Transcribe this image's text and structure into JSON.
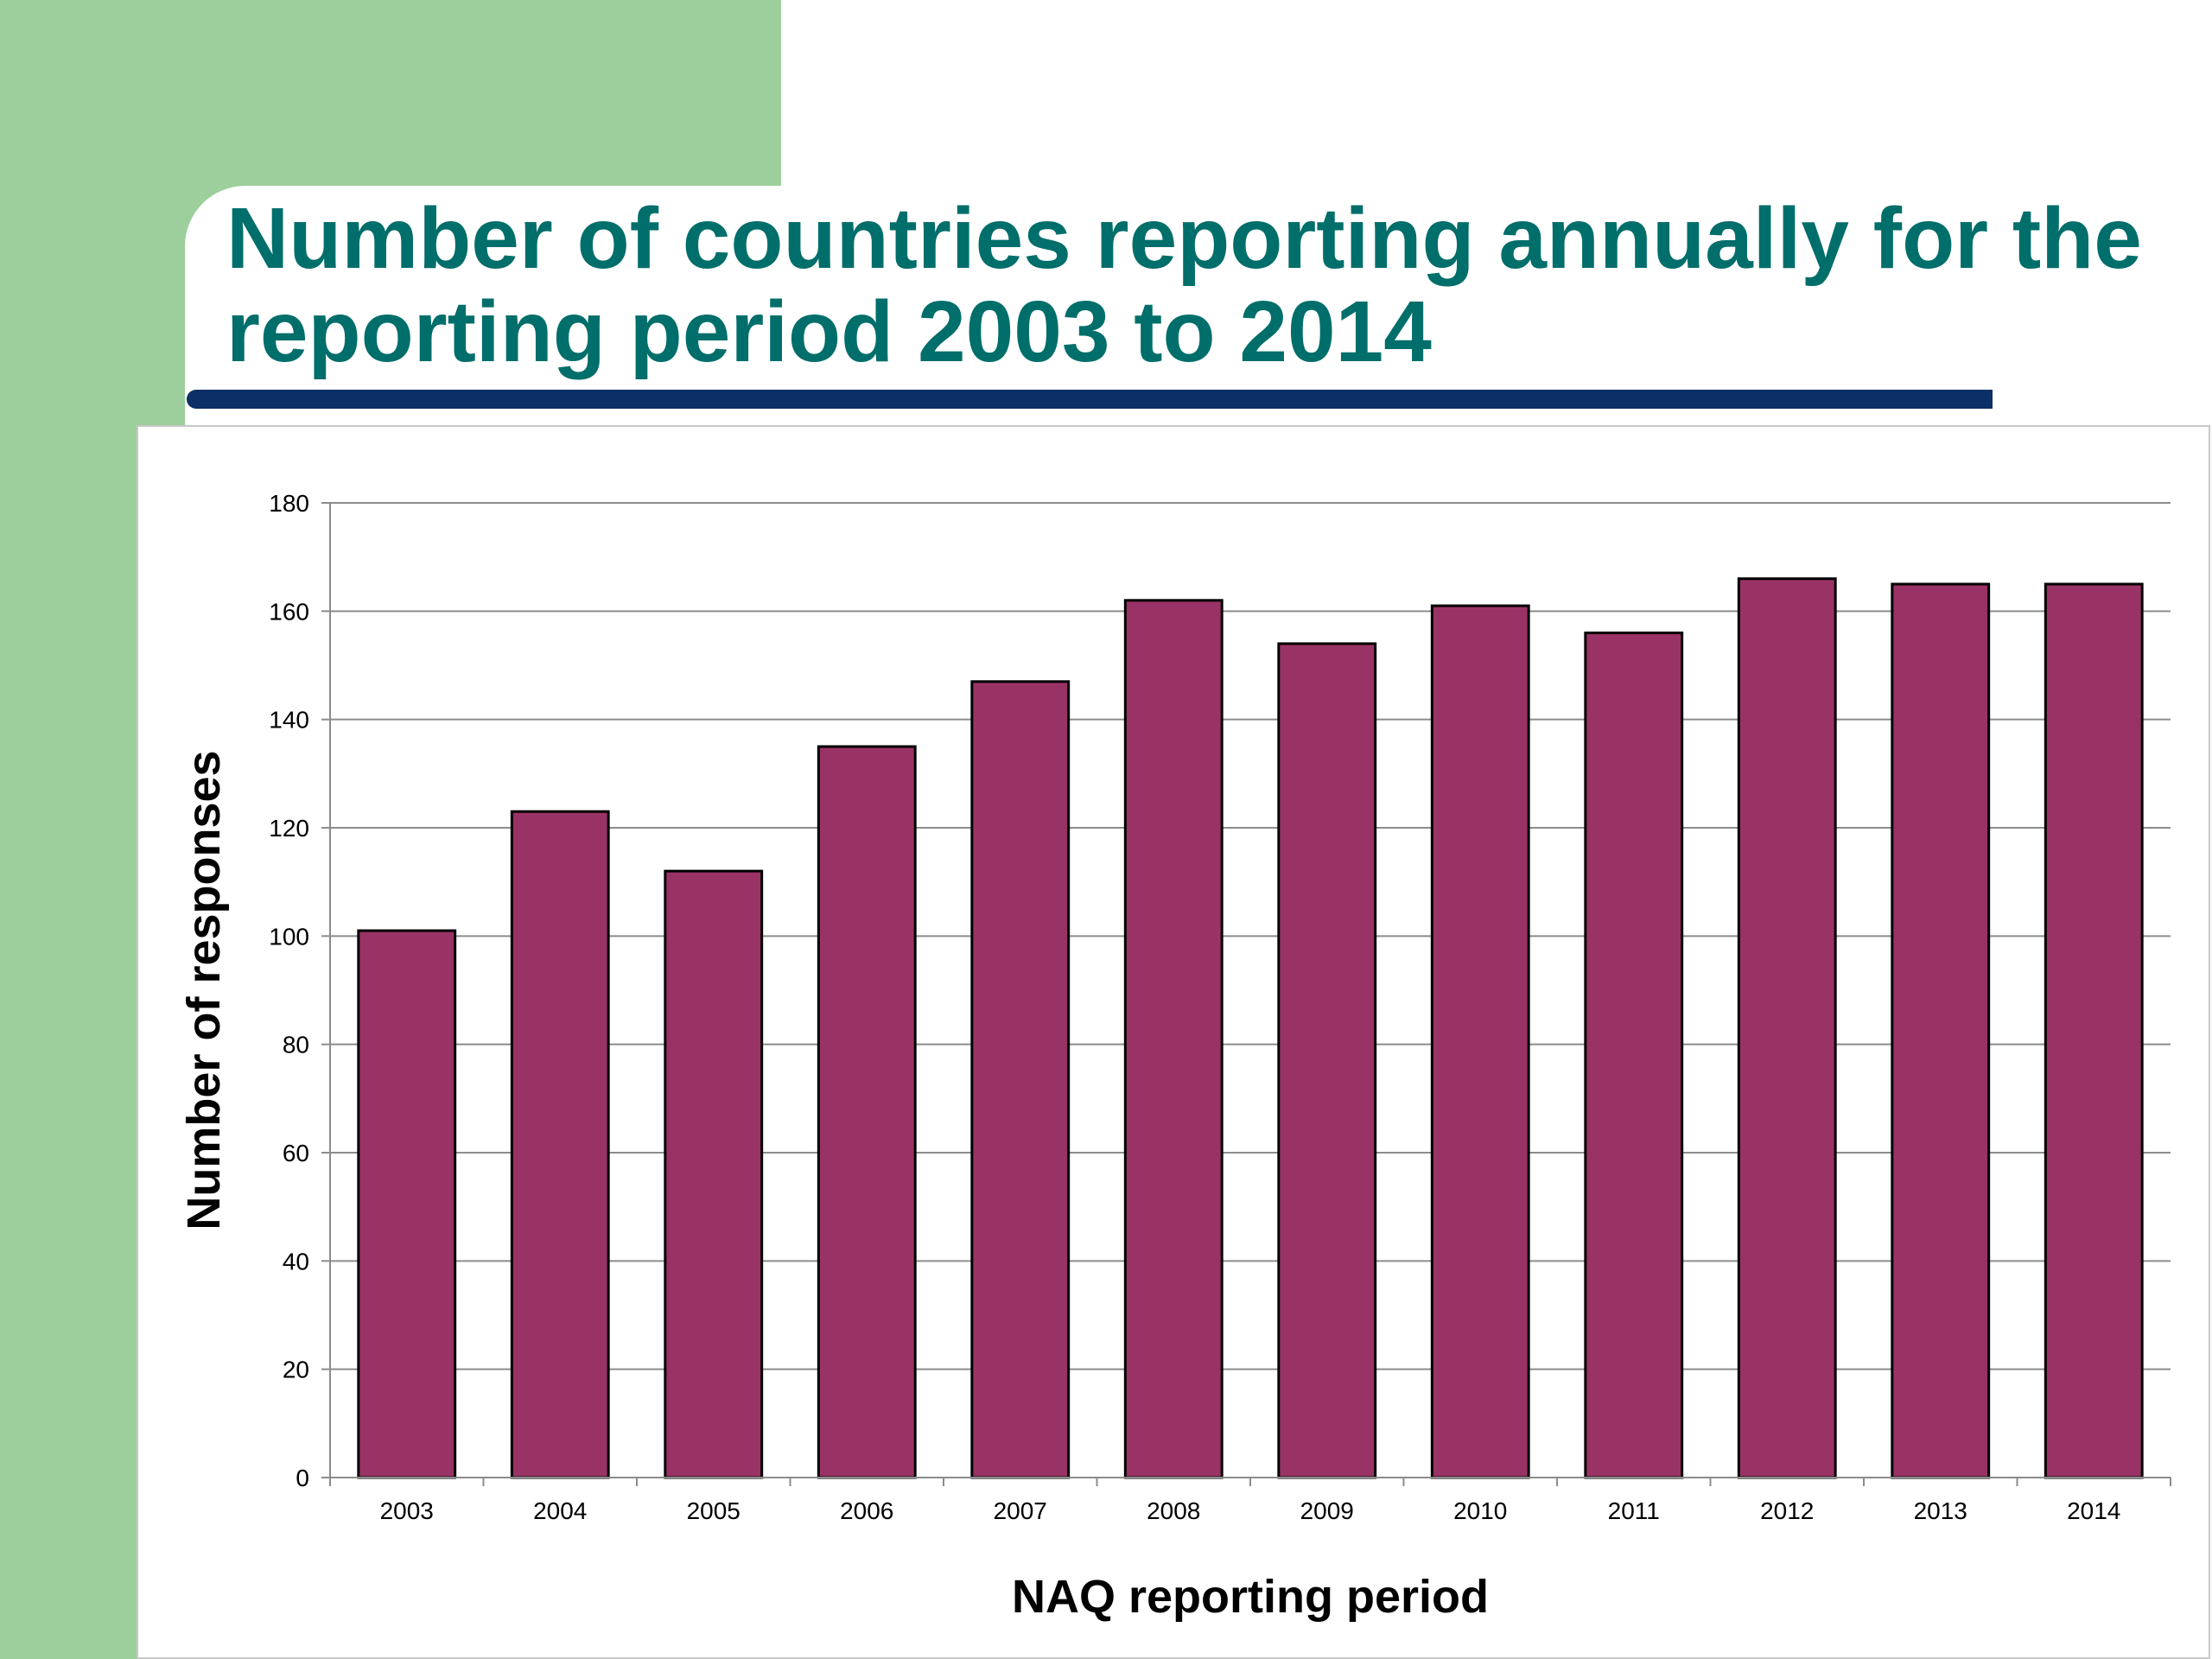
{
  "slide": {
    "title": "Number of countries reporting annually for the reporting period 2003 to 2014"
  },
  "colors": {
    "accent_green": "#9ccf9b",
    "title_teal": "#006e6a",
    "underline_navy": "#0b2f66",
    "bar_fill": "#993366",
    "gridline": "#8c8c8c"
  },
  "chart_data": {
    "type": "bar",
    "categories": [
      "2003",
      "2004",
      "2005",
      "2006",
      "2007",
      "2008",
      "2009",
      "2010",
      "2011",
      "2012",
      "2013",
      "2014"
    ],
    "series": [
      {
        "values": [
          101,
          123,
          112,
          135,
          147,
          162,
          154,
          161,
          156,
          166,
          165,
          165
        ]
      }
    ],
    "title": "",
    "xlabel": "NAQ reporting period",
    "ylabel": "Number of responses",
    "ylim": [
      0,
      180
    ],
    "yticks": [
      0,
      20,
      40,
      60,
      80,
      100,
      120,
      140,
      160,
      180
    ],
    "grid": true,
    "legend": "none"
  }
}
